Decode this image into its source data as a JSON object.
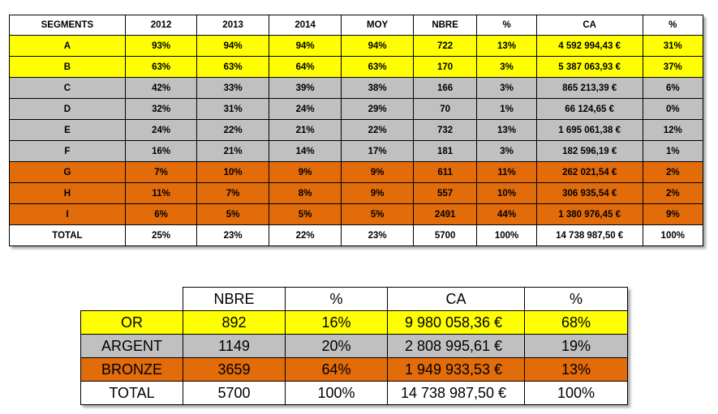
{
  "colors": {
    "yellow": "#ffff00",
    "gray": "#c0c0c0",
    "orange": "#e26b0a",
    "white": "#ffffff"
  },
  "segments_table": {
    "headers": [
      "SEGMENTS",
      "2012",
      "2013",
      "2014",
      "MOY",
      "NBRE",
      "%",
      "CA",
      "%"
    ],
    "rows": [
      {
        "color": "yellow",
        "cells": [
          "A",
          "93%",
          "94%",
          "94%",
          "94%",
          "722",
          "13%",
          "4 592 994,43 €",
          "31%"
        ]
      },
      {
        "color": "yellow",
        "cells": [
          "B",
          "63%",
          "63%",
          "64%",
          "63%",
          "170",
          "3%",
          "5 387 063,93 €",
          "37%"
        ]
      },
      {
        "color": "gray",
        "cells": [
          "C",
          "42%",
          "33%",
          "39%",
          "38%",
          "166",
          "3%",
          "865 213,39 €",
          "6%"
        ]
      },
      {
        "color": "gray",
        "cells": [
          "D",
          "32%",
          "31%",
          "24%",
          "29%",
          "70",
          "1%",
          "66 124,65  €",
          "0%"
        ]
      },
      {
        "color": "gray",
        "cells": [
          "E",
          "24%",
          "22%",
          "21%",
          "22%",
          "732",
          "13%",
          "1 695 061,38 €",
          "12%"
        ]
      },
      {
        "color": "gray",
        "cells": [
          "F",
          "16%",
          "21%",
          "14%",
          "17%",
          "181",
          "3%",
          "182 596,19 €",
          "1%"
        ]
      },
      {
        "color": "orange",
        "cells": [
          "G",
          "7%",
          "10%",
          "9%",
          "9%",
          "611",
          "11%",
          "262 021,54 €",
          "2%"
        ]
      },
      {
        "color": "orange",
        "cells": [
          "H",
          "11%",
          "7%",
          "8%",
          "9%",
          "557",
          "10%",
          "306 935,54 €",
          "2%"
        ]
      },
      {
        "color": "orange",
        "cells": [
          "I",
          "6%",
          "5%",
          "5%",
          "5%",
          "2491",
          "44%",
          "1 380 976,45 €",
          "9%"
        ]
      },
      {
        "color": "white",
        "cells": [
          "TOTAL",
          "25%",
          "23%",
          "22%",
          "23%",
          "5700",
          "100%",
          "14 738 987,50  €",
          "100%"
        ]
      }
    ]
  },
  "summary_table": {
    "headers": [
      "",
      "NBRE",
      "%",
      "CA",
      "%"
    ],
    "rows": [
      {
        "color": "yellow",
        "cells": [
          "OR",
          "892",
          "16%",
          "9 980 058,36 €",
          "68%"
        ]
      },
      {
        "color": "gray",
        "cells": [
          "ARGENT",
          "1149",
          "20%",
          "2 808 995,61 €",
          "19%"
        ]
      },
      {
        "color": "orange",
        "cells": [
          "BRONZE",
          "3659",
          "64%",
          "1 949 933,53 €",
          "13%"
        ]
      },
      {
        "color": "white",
        "cells": [
          "TOTAL",
          "5700",
          "100%",
          "14 738 987,50 €",
          "100%"
        ]
      }
    ]
  }
}
